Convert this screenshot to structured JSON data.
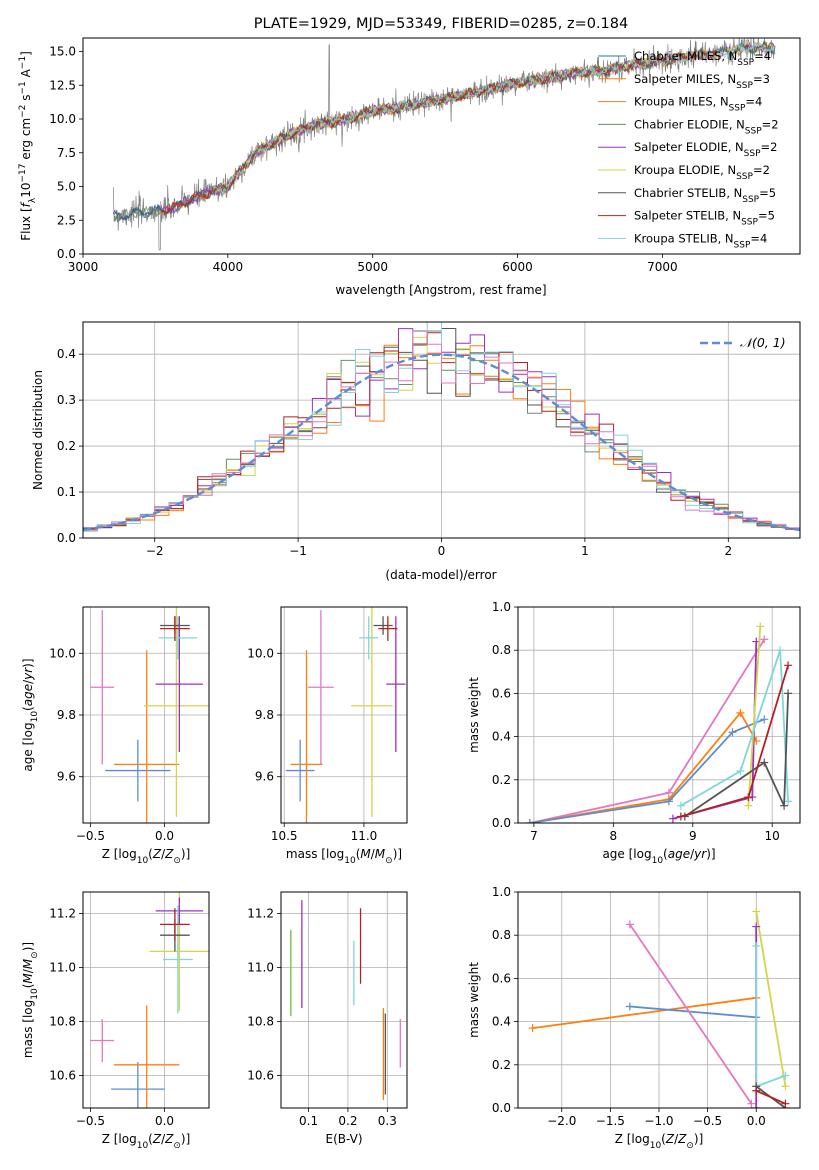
{
  "chart_data": [
    {
      "type": "line",
      "title": "PLATE=1929, MJD=53349, FIBERID=0285, z=0.184",
      "xlabel": "wavelength [Angstrom, rest frame]",
      "ylabel": "Flux [f_λ10^-17 erg cm^-2 s^-1 A^-1]",
      "xlim": [
        3000,
        7950
      ],
      "ylim": [
        0,
        16
      ],
      "xticks": [
        "3000",
        "4000",
        "5000",
        "6000",
        "7000"
      ],
      "yticks": [
        "0.0",
        "2.5",
        "5.0",
        "7.5",
        "10.0",
        "12.5",
        "15.0"
      ],
      "grid": false,
      "legend_position": "top-right",
      "observed_color": "#7f7f7f",
      "continuum": [
        [
          3210,
          2.8
        ],
        [
          3400,
          3.1
        ],
        [
          3600,
          3.3
        ],
        [
          3800,
          4.3
        ],
        [
          4000,
          5.0
        ],
        [
          4200,
          7.6
        ],
        [
          4400,
          8.7
        ],
        [
          4600,
          9.6
        ],
        [
          4800,
          9.9
        ],
        [
          5000,
          10.6
        ],
        [
          5200,
          10.9
        ],
        [
          5400,
          11.3
        ],
        [
          5600,
          11.7
        ],
        [
          5800,
          12.2
        ],
        [
          6000,
          12.7
        ],
        [
          6200,
          13.0
        ],
        [
          6400,
          13.4
        ],
        [
          6600,
          13.6
        ],
        [
          6800,
          14.0
        ],
        [
          7000,
          14.3
        ],
        [
          7200,
          14.7
        ],
        [
          7400,
          14.9
        ],
        [
          7600,
          15.3
        ],
        [
          7800,
          15.2
        ]
      ],
      "series": [
        {
          "name": "Chabrier MILES, N_SSP=4",
          "label": "Chabrier MILES, N",
          "sub": "SSP",
          "suffix": "=4",
          "color": "#1f77b4"
        },
        {
          "name": "Salpeter MILES, N_SSP=3",
          "label": "Salpeter MILES, N",
          "sub": "SSP",
          "suffix": "=3",
          "color": "#ff7f0e"
        },
        {
          "name": "Kroupa MILES, N_SSP=4",
          "label": "Kroupa MILES, N",
          "sub": "SSP",
          "suffix": "=4",
          "color": "#d8852a"
        },
        {
          "name": "Chabrier ELODIE, N_SSP=2",
          "label": "Chabrier ELODIE, N",
          "sub": "SSP",
          "suffix": "=2",
          "color": "#6b8e6b"
        },
        {
          "name": "Salpeter ELODIE, N_SSP=2",
          "label": "Salpeter ELODIE, N",
          "sub": "SSP",
          "suffix": "=2",
          "color": "#9b30c8"
        },
        {
          "name": "Kroupa ELODIE, N_SSP=2",
          "label": "Kroupa ELODIE, N",
          "sub": "SSP",
          "suffix": "=2",
          "color": "#d4d44a"
        },
        {
          "name": "Chabrier STELIB, N_SSP=5",
          "label": "Chabrier STELIB, N",
          "sub": "SSP",
          "suffix": "=5",
          "color": "#555555"
        },
        {
          "name": "Salpeter STELIB, N_SSP=5",
          "label": "Salpeter STELIB, N",
          "sub": "SSP",
          "suffix": "=5",
          "color": "#b22222"
        },
        {
          "name": "Kroupa STELIB, N_SSP=4",
          "label": "Kroupa STELIB, N",
          "sub": "SSP",
          "suffix": "=4",
          "color": "#7fd6dc"
        }
      ]
    },
    {
      "type": "line",
      "xlabel": "(data-model)/error",
      "ylabel": "Normed distribution",
      "xlim": [
        -2.5,
        2.5
      ],
      "ylim": [
        0,
        0.47
      ],
      "xticks": [
        "−2",
        "−1",
        "0",
        "1",
        "2"
      ],
      "yticks": [
        "0.0",
        "0.1",
        "0.2",
        "0.3",
        "0.4"
      ],
      "grid": true,
      "legend_position": "top-right",
      "legend_label": "𝒩(0, 1)",
      "reference_color": "#5f8dd3",
      "histogram_colors": [
        "#6b8e6b",
        "#ff7f0e",
        "#9b30c8",
        "#d4d44a",
        "#555555",
        "#b22222",
        "#7fd6dc",
        "#e377c2"
      ]
    },
    {
      "type": "scatter",
      "xlabel": "Z [log10(Z/Z⊙)]",
      "ylabel": "age  [log10(age/yr)]",
      "xlim": [
        -0.55,
        0.3
      ],
      "ylim": [
        9.45,
        10.15
      ],
      "xticks": [
        "−0.5",
        "0.0"
      ],
      "yticks": [
        "9.6",
        "9.8",
        "10.0"
      ],
      "grid": true,
      "points": [
        {
          "x": -0.42,
          "y": 9.89,
          "xerr": 0.08,
          "yerr": 0.25,
          "color": "#e377c2"
        },
        {
          "x": -0.18,
          "y": 9.62,
          "xerr": 0.22,
          "yerr": 0.1,
          "color": "#5f8dd3"
        },
        {
          "x": -0.12,
          "y": 9.64,
          "xerr": 0.22,
          "yerr": 0.37,
          "color": "#ff7f0e"
        },
        {
          "x": 0.08,
          "y": 9.83,
          "xerr": 0.22,
          "yerr": 0.36,
          "color": "#d4d44a"
        },
        {
          "x": 0.1,
          "y": 9.9,
          "xerr": 0.16,
          "yerr": 0.22,
          "color": "#9b30c8"
        },
        {
          "x": 0.09,
          "y": 10.05,
          "xerr": 0.13,
          "yerr": 0.07,
          "color": "#7fd6dc"
        },
        {
          "x": 0.07,
          "y": 10.09,
          "xerr": 0.1,
          "yerr": 0.03,
          "color": "#555555"
        },
        {
          "x": 0.07,
          "y": 10.08,
          "xerr": 0.1,
          "yerr": 0.04,
          "color": "#b22222"
        }
      ]
    },
    {
      "type": "scatter",
      "xlabel": "mass [log10(M/M⊙)]",
      "ylabel": "",
      "xlim": [
        10.48,
        11.27
      ],
      "ylim": [
        9.45,
        10.15
      ],
      "xticks": [
        "10.5",
        "11.0"
      ],
      "yticks": [
        "9.6",
        "9.8",
        "10.0"
      ],
      "grid": true,
      "points": [
        {
          "x": 10.73,
          "y": 9.89,
          "xerr": 0.08,
          "yerr": 0.25,
          "color": "#e377c2"
        },
        {
          "x": 10.6,
          "y": 9.62,
          "xerr": 0.09,
          "yerr": 0.1,
          "color": "#5f8dd3"
        },
        {
          "x": 10.64,
          "y": 9.64,
          "xerr": 0.1,
          "yerr": 0.37,
          "color": "#ff7f0e"
        },
        {
          "x": 11.05,
          "y": 9.83,
          "xerr": 0.13,
          "yerr": 0.36,
          "color": "#d4d44a"
        },
        {
          "x": 11.2,
          "y": 9.9,
          "xerr": 0.06,
          "yerr": 0.22,
          "color": "#9b30c8"
        },
        {
          "x": 11.03,
          "y": 10.05,
          "xerr": 0.06,
          "yerr": 0.07,
          "color": "#7fd6dc"
        },
        {
          "x": 11.12,
          "y": 10.09,
          "xerr": 0.06,
          "yerr": 0.03,
          "color": "#555555"
        },
        {
          "x": 11.15,
          "y": 10.08,
          "xerr": 0.06,
          "yerr": 0.04,
          "color": "#b22222"
        }
      ]
    },
    {
      "type": "line",
      "xlabel": "age  [log10(age/yr)]",
      "ylabel": "mass weight",
      "xlim": [
        6.8,
        10.35
      ],
      "ylim": [
        0,
        1
      ],
      "xticks": [
        "7",
        "8",
        "9",
        "10"
      ],
      "yticks": [
        "0.0",
        "0.2",
        "0.4",
        "0.6",
        "0.8",
        "1.0"
      ],
      "grid": true,
      "series": [
        {
          "color": "#e377c2",
          "points": [
            [
              6.95,
              0.0
            ],
            [
              8.7,
              0.14
            ],
            [
              9.9,
              0.85
            ]
          ]
        },
        {
          "color": "#ff7f0e",
          "points": [
            [
              6.95,
              0.0
            ],
            [
              8.7,
              0.11
            ],
            [
              9.6,
              0.51
            ],
            [
              9.8,
              0.38
            ]
          ]
        },
        {
          "color": "#5f8dd3",
          "points": [
            [
              6.95,
              0.0
            ],
            [
              8.7,
              0.1
            ],
            [
              9.5,
              0.42
            ],
            [
              9.9,
              0.48
            ]
          ]
        },
        {
          "color": "#9b30c8",
          "points": [
            [
              8.75,
              0.02
            ],
            [
              9.75,
              0.12
            ],
            [
              9.8,
              0.84
            ]
          ]
        },
        {
          "color": "#d4d44a",
          "points": [
            [
              9.7,
              0.08
            ],
            [
              9.85,
              0.91
            ]
          ]
        },
        {
          "color": "#7fd6dc",
          "points": [
            [
              8.85,
              0.08
            ],
            [
              9.6,
              0.24
            ],
            [
              10.1,
              0.8
            ],
            [
              10.2,
              0.1
            ]
          ]
        },
        {
          "color": "#555555",
          "points": [
            [
              8.9,
              0.03
            ],
            [
              9.9,
              0.28
            ],
            [
              10.15,
              0.08
            ],
            [
              10.2,
              0.6
            ]
          ]
        },
        {
          "color": "#b22222",
          "points": [
            [
              8.85,
              0.03
            ],
            [
              9.7,
              0.12
            ],
            [
              10.2,
              0.73
            ]
          ]
        }
      ]
    },
    {
      "type": "scatter",
      "xlabel": "Z [log10(Z/Z⊙)]",
      "ylabel": "mass [log10(M/M⊙)]",
      "xlim": [
        -0.55,
        0.3
      ],
      "ylim": [
        10.48,
        11.28
      ],
      "xticks": [
        "−0.5",
        "0.0"
      ],
      "yticks": [
        "10.6",
        "10.8",
        "11.0",
        "11.2"
      ],
      "grid": true,
      "points": [
        {
          "x": -0.42,
          "y": 10.73,
          "xerr": 0.08,
          "yerr": 0.08,
          "color": "#e377c2"
        },
        {
          "x": -0.18,
          "y": 10.55,
          "xerr": 0.18,
          "yerr": 0.1,
          "color": "#5f8dd3"
        },
        {
          "x": -0.12,
          "y": 10.64,
          "xerr": 0.22,
          "yerr": 0.22,
          "color": "#ff7f0e"
        },
        {
          "x": 0.1,
          "y": 11.06,
          "xerr": 0.2,
          "yerr": 0.22,
          "color": "#d4d44a"
        },
        {
          "x": 0.1,
          "y": 11.21,
          "xerr": 0.16,
          "yerr": 0.05,
          "color": "#9b30c8"
        },
        {
          "x": 0.09,
          "y": 11.03,
          "xerr": 0.1,
          "yerr": 0.2,
          "color": "#7fd6dc"
        },
        {
          "x": 0.07,
          "y": 11.12,
          "xerr": 0.1,
          "yerr": 0.06,
          "color": "#555555"
        },
        {
          "x": 0.07,
          "y": 11.16,
          "xerr": 0.1,
          "yerr": 0.06,
          "color": "#b22222"
        }
      ]
    },
    {
      "type": "scatter",
      "xlabel": "E(B-V)",
      "ylabel": "",
      "xlim": [
        0.03,
        0.35
      ],
      "ylim": [
        10.48,
        11.28
      ],
      "xticks": [
        "0.1",
        "0.2",
        "0.3"
      ],
      "yticks": [
        "10.6",
        "10.8",
        "11.0",
        "11.2"
      ],
      "grid": true,
      "points": [
        {
          "x": 0.055,
          "y": 10.98,
          "yerr": 0.16,
          "color": "#6fbf3a"
        },
        {
          "x": 0.083,
          "y": 11.05,
          "yerr": 0.2,
          "color": "#9b30c8"
        },
        {
          "x": 0.215,
          "y": 10.98,
          "yerr": 0.12,
          "color": "#7fd6dc"
        },
        {
          "x": 0.232,
          "y": 11.08,
          "yerr": 0.14,
          "color": "#b22222"
        },
        {
          "x": 0.29,
          "y": 10.68,
          "yerr": 0.17,
          "color": "#ff7f0e"
        },
        {
          "x": 0.295,
          "y": 10.68,
          "yerr": 0.15,
          "color": "#555555"
        },
        {
          "x": 0.333,
          "y": 10.72,
          "yerr": 0.09,
          "color": "#e377c2"
        }
      ]
    },
    {
      "type": "line",
      "xlabel": "Z [log10(Z/Z⊙)]",
      "ylabel": "mass weight",
      "xlim": [
        -2.45,
        0.45
      ],
      "ylim": [
        0,
        1
      ],
      "xticks": [
        "−2.0",
        "−1.5",
        "−1.0",
        "−0.5",
        "0.0"
      ],
      "yticks": [
        "0.0",
        "0.2",
        "0.4",
        "0.6",
        "0.8",
        "1.0"
      ],
      "grid": true,
      "series": [
        {
          "color": "#ff7f0e",
          "points": [
            [
              -2.3,
              0.37
            ],
            [
              0.0,
              0.51
            ]
          ]
        },
        {
          "color": "#5f8dd3",
          "points": [
            [
              -1.3,
              0.47
            ],
            [
              0.0,
              0.42
            ]
          ]
        },
        {
          "color": "#e377c2",
          "points": [
            [
              -1.3,
              0.85
            ],
            [
              -0.05,
              0.02
            ]
          ]
        },
        {
          "color": "#d4d44a",
          "points": [
            [
              0.0,
              0.91
            ],
            [
              0.3,
              0.1
            ]
          ]
        },
        {
          "color": "#9b30c8",
          "points": [
            [
              0.0,
              0.84
            ],
            [
              0.0,
              0.0
            ]
          ]
        },
        {
          "color": "#7fd6dc",
          "points": [
            [
              0.0,
              0.75
            ],
            [
              0.0,
              0.1
            ],
            [
              0.3,
              0.15
            ]
          ]
        },
        {
          "color": "#555555",
          "points": [
            [
              0.0,
              0.1
            ],
            [
              0.3,
              0.0
            ]
          ]
        },
        {
          "color": "#b22222",
          "points": [
            [
              0.0,
              0.08
            ],
            [
              0.3,
              0.02
            ]
          ]
        }
      ]
    }
  ]
}
